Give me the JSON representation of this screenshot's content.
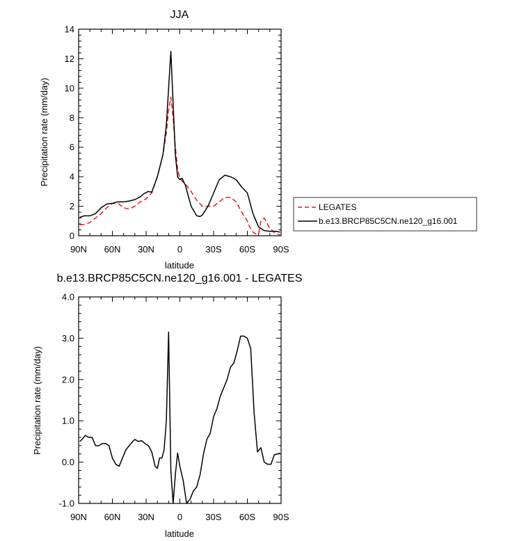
{
  "chart_data": [
    {
      "type": "line",
      "title": "JJA",
      "xlabel": "latitude",
      "ylabel": "Precipitation rate (mm/day)",
      "xlim": [
        90,
        -90
      ],
      "ylim": [
        0,
        14
      ],
      "x_ticks": [
        90,
        60,
        30,
        0,
        -30,
        -60,
        -90
      ],
      "x_tick_labels": [
        "90N",
        "60N",
        "30N",
        "0",
        "30S",
        "60S",
        "90S"
      ],
      "y_ticks": [
        0,
        2,
        4,
        6,
        8,
        10,
        12,
        14
      ],
      "y_tick_labels": [
        "0",
        "2",
        "4",
        "6",
        "8",
        "10",
        "12",
        "14"
      ],
      "legend": {
        "placement": "right",
        "entries": [
          {
            "label": "LEGATES",
            "color": "#e8171d",
            "dash": "dashed"
          },
          {
            "label": "b.e13.BRCP85C5CN.ne120_g16.001",
            "color": "#000000",
            "dash": "solid"
          }
        ]
      },
      "series": [
        {
          "name": "LEGATES",
          "color": "#e8171d",
          "dash": "dashed",
          "x": [
            89,
            85,
            80,
            75,
            70,
            65,
            60,
            55,
            50,
            45,
            40,
            35,
            30,
            25,
            20,
            15,
            12,
            10,
            8,
            6,
            4,
            2,
            0,
            -2,
            -5,
            -10,
            -15,
            -20,
            -25,
            -30,
            -35,
            -40,
            -45,
            -50,
            -55,
            -60,
            -62,
            -65,
            -68,
            -70,
            -72,
            -75,
            -80,
            -85,
            -89
          ],
          "y": [
            0.75,
            0.75,
            0.9,
            1.2,
            1.5,
            1.9,
            2.2,
            2.2,
            1.9,
            1.8,
            2.0,
            2.3,
            2.5,
            2.9,
            4.0,
            5.5,
            7.0,
            8.5,
            9.4,
            8.0,
            6.0,
            4.5,
            3.9,
            3.7,
            3.5,
            3.0,
            2.4,
            2.0,
            2.0,
            2.0,
            2.3,
            2.6,
            2.6,
            2.3,
            1.6,
            1.0,
            0.6,
            0.25,
            0.1,
            0.15,
            1.0,
            1.2,
            0.5,
            0.15,
            0.05
          ]
        },
        {
          "name": "b.e13.BRCP85C5CN.ne120_g16.001",
          "color": "#000000",
          "dash": "solid",
          "x": [
            89,
            85,
            80,
            75,
            70,
            65,
            60,
            55,
            50,
            45,
            40,
            35,
            32,
            28,
            25,
            20,
            15,
            12,
            10,
            8,
            6,
            4,
            2,
            0,
            -2,
            -5,
            -10,
            -15,
            -18,
            -20,
            -25,
            -30,
            -35,
            -40,
            -45,
            -50,
            -55,
            -60,
            -65,
            -70,
            -75,
            -80,
            -85,
            -89
          ],
          "y": [
            1.25,
            1.35,
            1.35,
            1.5,
            1.9,
            2.15,
            2.2,
            2.3,
            2.3,
            2.35,
            2.45,
            2.65,
            2.85,
            3.0,
            2.95,
            4.0,
            5.5,
            7.5,
            10.0,
            12.5,
            9.0,
            5.5,
            4.0,
            3.8,
            3.9,
            3.4,
            2.0,
            1.35,
            1.3,
            1.4,
            2.0,
            2.9,
            3.8,
            4.1,
            4.0,
            3.8,
            3.3,
            2.9,
            1.5,
            0.6,
            0.35,
            0.3,
            0.3,
            0.25
          ]
        }
      ]
    },
    {
      "type": "line",
      "title": "b.e13.BRCP85C5CN.ne120_g16.001 - LEGATES",
      "xlabel": "latitude",
      "ylabel": "Precipitation rate (mm/day)",
      "xlim": [
        90,
        -90
      ],
      "ylim": [
        -1.0,
        4.0
      ],
      "x_ticks": [
        90,
        60,
        30,
        0,
        -30,
        -60,
        -90
      ],
      "x_tick_labels": [
        "90N",
        "60N",
        "30N",
        "0",
        "30S",
        "60S",
        "90S"
      ],
      "y_ticks": [
        -1.0,
        0.0,
        1.0,
        2.0,
        3.0,
        4.0
      ],
      "y_tick_labels": [
        "-1.0",
        "0.0",
        "1.0",
        "2.0",
        "3.0",
        "4.0"
      ],
      "series": [
        {
          "color": "#000000",
          "dash": "solid",
          "x": [
            89,
            87,
            84,
            81,
            78,
            75,
            72,
            69,
            66,
            63,
            60,
            57,
            54,
            51,
            48,
            45,
            42,
            40,
            37,
            34,
            31,
            28,
            25,
            22,
            20,
            18,
            16,
            14,
            12,
            10,
            8,
            6,
            4,
            2,
            0,
            -3,
            -6,
            -9,
            -12,
            -15,
            -18,
            -21,
            -24,
            -27,
            -30,
            -33,
            -36,
            -39,
            -42,
            -45,
            -48,
            -51,
            -54,
            -57,
            -60,
            -63,
            -66,
            -69,
            -72,
            -75,
            -78,
            -81,
            -84,
            -87,
            -89
          ],
          "y": [
            0.5,
            0.55,
            0.65,
            0.6,
            0.6,
            0.4,
            0.4,
            0.45,
            0.45,
            0.4,
            0.1,
            -0.05,
            -0.1,
            0.1,
            0.3,
            0.4,
            0.5,
            0.55,
            0.5,
            0.52,
            0.45,
            0.4,
            0.25,
            -0.1,
            -0.15,
            0.1,
            0.1,
            0.3,
            1.0,
            3.15,
            -0.2,
            -1.0,
            -0.3,
            0.22,
            -0.1,
            -0.45,
            -1.0,
            -0.9,
            -0.7,
            -0.6,
            -0.3,
            0.2,
            0.55,
            0.7,
            1.1,
            1.3,
            1.6,
            1.8,
            2.0,
            2.3,
            2.4,
            2.7,
            3.05,
            3.05,
            3.0,
            2.75,
            1.2,
            0.25,
            0.35,
            0.0,
            -0.05,
            -0.05,
            0.18,
            0.2,
            0.22
          ]
        }
      ]
    }
  ]
}
